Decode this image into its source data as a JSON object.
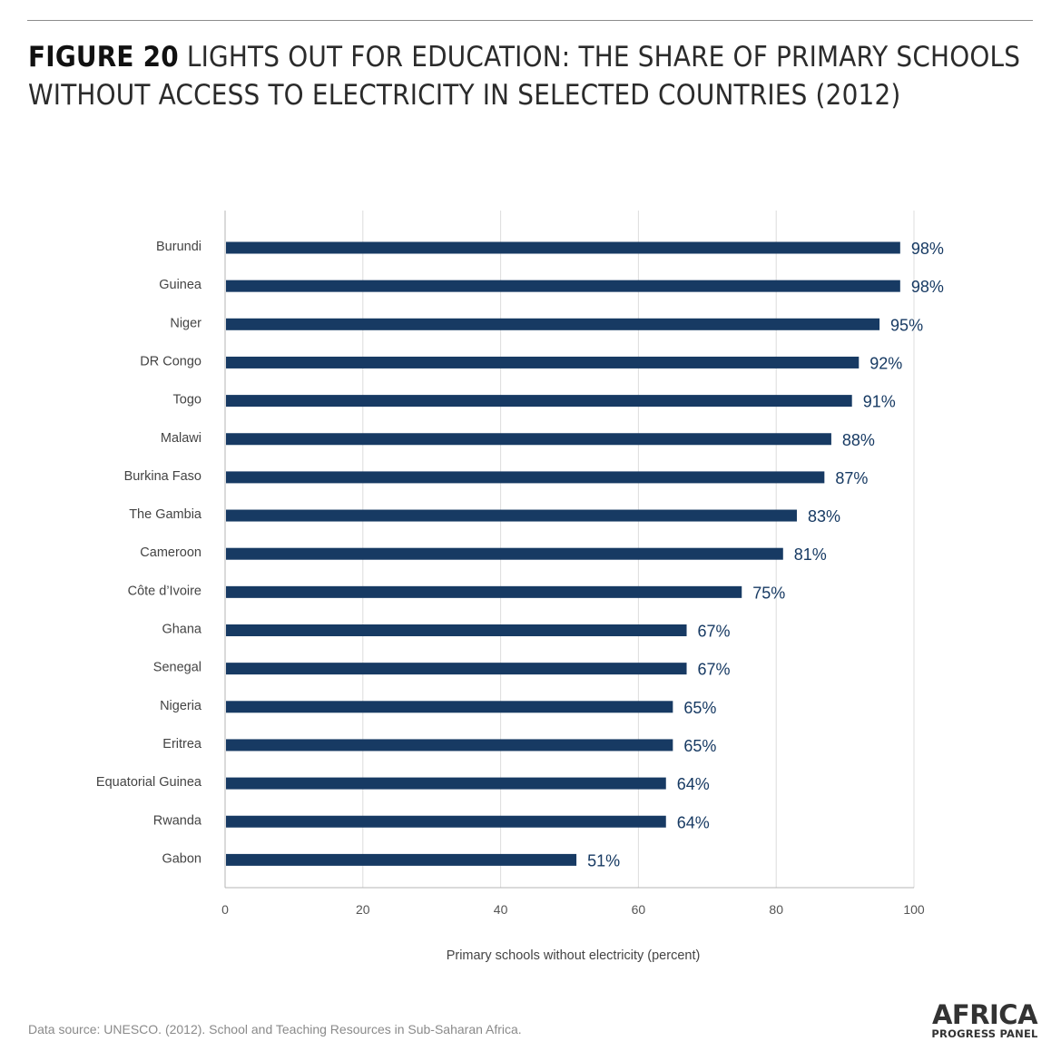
{
  "header": {
    "figure_label": "FIGURE 20",
    "title_text": "LIGHTS OUT FOR EDUCATION: THE SHARE OF PRIMARY SCHOOLS WITHOUT ACCESS TO ELECTRICITY IN SELECTED COUNTRIES (2012)"
  },
  "chart_data": {
    "type": "bar",
    "orientation": "horizontal",
    "categories": [
      "Burundi",
      "Guinea",
      "Niger",
      "DR Congo",
      "Togo",
      "Malawi",
      "Burkina Faso",
      "The Gambia",
      "Cameroon",
      "Côte d’Ivoire",
      "Ghana",
      "Senegal",
      "Nigeria",
      "Eritrea",
      "Equatorial Guinea",
      "Rwanda",
      "Gabon"
    ],
    "values": [
      98,
      98,
      95,
      92,
      91,
      88,
      87,
      83,
      81,
      75,
      67,
      67,
      65,
      65,
      64,
      64,
      51
    ],
    "data_labels": [
      "98%",
      "98%",
      "95%",
      "92%",
      "91%",
      "88%",
      "87%",
      "83%",
      "81%",
      "75%",
      "67%",
      "67%",
      "65%",
      "65%",
      "64%",
      "64%",
      "51%"
    ],
    "xlabel": "Primary schools without electricity (percent)",
    "xlim": [
      0,
      100
    ],
    "xticks": [
      0,
      20,
      40,
      60,
      80,
      100
    ],
    "grid": "vertical",
    "bar_color": "#173a63",
    "label_color": "#173a63"
  },
  "footer": {
    "source": "Data source: UNESCO. (2012). School and Teaching Resources in Sub-Saharan Africa.",
    "logo_top": "AFRICA",
    "logo_bottom": "PROGRESS PANEL"
  }
}
